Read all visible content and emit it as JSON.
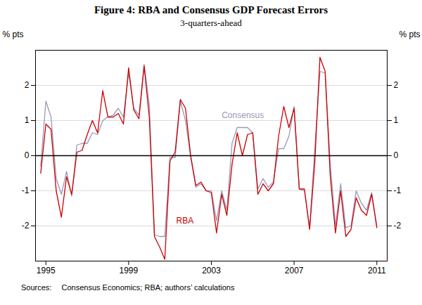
{
  "chart_data": {
    "type": "line",
    "title": "Figure 4: RBA and Consensus GDP Forecast Errors",
    "subtitle": "3-quarters-ahead",
    "ylabel": "% pts",
    "y2label": "% pts",
    "caption": "Sources:  Consensus Economics; RBA; authors’ calculations",
    "xlim": [
      1994.5,
      2011.5
    ],
    "xticks": [
      1995,
      1999,
      2003,
      2007,
      2011
    ],
    "ylim": [
      -3,
      3
    ],
    "yticks": [
      -2,
      -1,
      0,
      1,
      2
    ],
    "grid": true,
    "x": [
      1994.75,
      1995.0,
      1995.25,
      1995.5,
      1995.75,
      1996.0,
      1996.25,
      1996.5,
      1996.75,
      1997.0,
      1997.25,
      1997.5,
      1997.75,
      1998.0,
      1998.25,
      1998.5,
      1998.75,
      1999.0,
      1999.25,
      1999.5,
      1999.75,
      2000.0,
      2000.25,
      2000.5,
      2000.75,
      2001.0,
      2001.25,
      2001.5,
      2001.75,
      2002.0,
      2002.25,
      2002.5,
      2002.75,
      2003.0,
      2003.25,
      2003.5,
      2003.75,
      2004.0,
      2004.25,
      2004.5,
      2004.75,
      2005.0,
      2005.25,
      2005.5,
      2005.75,
      2006.0,
      2006.25,
      2006.5,
      2006.75,
      2007.0,
      2007.25,
      2007.5,
      2007.75,
      2008.0,
      2008.25,
      2008.5,
      2008.75,
      2009.0,
      2009.25,
      2009.5,
      2009.75,
      2010.0,
      2010.25,
      2010.5,
      2010.75,
      2011.0
    ],
    "series": [
      {
        "name": "Consensus",
        "color": "#9999bb",
        "values": [
          -0.3,
          1.55,
          1.1,
          -0.65,
          -1.1,
          -0.45,
          -1.15,
          0.3,
          0.35,
          0.35,
          0.65,
          0.6,
          1.0,
          1.1,
          1.15,
          1.35,
          1.1,
          2.35,
          1.35,
          1.15,
          2.6,
          1.45,
          -2.25,
          -2.3,
          -2.3,
          -0.05,
          -0.05,
          1.55,
          1.0,
          -0.05,
          -0.9,
          -0.8,
          -1.0,
          -1.0,
          -1.85,
          -1.0,
          -1.55,
          0.35,
          0.8,
          0.8,
          0.8,
          0.65,
          -0.95,
          -0.65,
          -0.9,
          -0.75,
          0.2,
          0.2,
          0.55,
          1.4,
          -0.95,
          -1.0,
          -2.05,
          0.2,
          2.4,
          2.35,
          -0.25,
          -2.0,
          -0.8,
          -2.05,
          -2.0,
          -1.0,
          -1.35,
          -1.55,
          -1.05,
          -2.0
        ]
      },
      {
        "name": "RBA",
        "color": "#cc0000",
        "values": [
          -0.5,
          0.9,
          0.75,
          -1.0,
          -1.75,
          -0.6,
          -1.1,
          0.1,
          0.15,
          0.6,
          1.0,
          0.65,
          1.85,
          1.1,
          1.1,
          1.2,
          0.9,
          2.5,
          1.3,
          1.05,
          2.55,
          1.1,
          -2.3,
          -2.6,
          -2.95,
          -0.15,
          0.1,
          1.6,
          1.35,
          0.0,
          -0.85,
          -0.75,
          -1.0,
          -1.05,
          -2.2,
          -1.1,
          -1.7,
          -0.25,
          0.65,
          0.0,
          0.6,
          0.65,
          -1.1,
          -0.8,
          -1.0,
          -0.8,
          0.55,
          1.4,
          0.8,
          1.35,
          -0.95,
          -0.95,
          -2.1,
          -0.2,
          2.8,
          2.4,
          -0.6,
          -2.2,
          -1.0,
          -2.3,
          -2.1,
          -1.2,
          -1.55,
          -1.7,
          -1.1,
          -2.05
        ]
      }
    ],
    "annotations": [
      {
        "text": "Consensus",
        "x": 2003.5,
        "y": 1.15,
        "color": "#9999bb"
      },
      {
        "text": "RBA",
        "x": 2001.3,
        "y": -1.85,
        "color": "#cc0000"
      }
    ]
  }
}
